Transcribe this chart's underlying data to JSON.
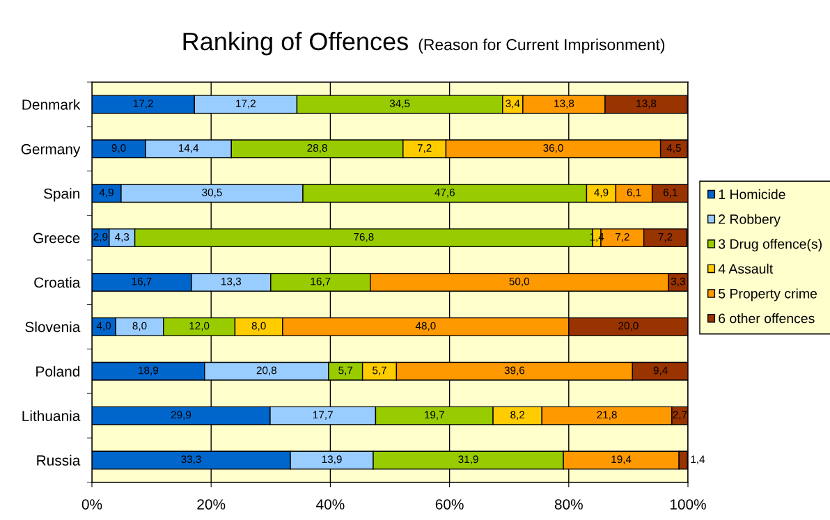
{
  "chart_data": {
    "type": "bar",
    "orientation": "horizontal",
    "stacked": true,
    "title": "Ranking of Offences",
    "subtitle": "(Reason for Current Imprisonment)",
    "categories": [
      "Denmark",
      "Germany",
      "Spain",
      "Greece",
      "Croatia",
      "Slovenia",
      "Poland",
      "Lithuania",
      "Russia"
    ],
    "series": [
      {
        "name": "1 Homicide",
        "color": "#0066cc",
        "values": [
          17.2,
          9.0,
          4.9,
          2.9,
          16.7,
          4.0,
          18.9,
          29.9,
          33.3
        ],
        "value_labels": [
          "17,2",
          "9,0",
          "4,9",
          "2,9",
          "16,7",
          "4,0",
          "18,9",
          "29,9",
          "33,3"
        ]
      },
      {
        "name": "2 Robbery",
        "color": "#99ccff",
        "values": [
          17.2,
          14.4,
          30.5,
          4.3,
          13.3,
          8.0,
          20.8,
          17.7,
          13.9
        ],
        "value_labels": [
          "17,2",
          "14,4",
          "30,5",
          "4,3",
          "13,3",
          "8,0",
          "20,8",
          "17,7",
          "13,9"
        ]
      },
      {
        "name": "3 Drug offence(s)",
        "color": "#99cc00",
        "values": [
          34.5,
          28.8,
          47.6,
          76.8,
          16.7,
          12.0,
          5.7,
          19.7,
          31.9
        ],
        "value_labels": [
          "34,5",
          "28,8",
          "47,6",
          "76,8",
          "16,7",
          "12,0",
          "5,7",
          "19,7",
          "31,9"
        ]
      },
      {
        "name": "4 Assault",
        "color": "#ffcc00",
        "values": [
          3.4,
          7.2,
          4.9,
          1.4,
          null,
          8.0,
          5.7,
          8.2,
          null
        ],
        "value_labels": [
          "3,4",
          "7,2",
          "4,9",
          "1,4",
          null,
          "8,0",
          "5,7",
          "8,2",
          null
        ]
      },
      {
        "name": "5 Property crime",
        "color": "#ff9900",
        "values": [
          13.8,
          36.0,
          6.1,
          7.2,
          50.0,
          48.0,
          39.6,
          21.8,
          19.4
        ],
        "value_labels": [
          "13,8",
          "36,0",
          "6,1",
          "7,2",
          "50,0",
          "48,0",
          "39,6",
          "21,8",
          "19,4"
        ]
      },
      {
        "name": "6 other offences",
        "color": "#993300",
        "values": [
          13.8,
          4.5,
          6.1,
          7.2,
          3.3,
          20.0,
          9.4,
          2.7,
          1.4
        ],
        "value_labels": [
          "13,8",
          "4,5",
          "6,1",
          "7,2",
          "3,3",
          "20,0",
          "9,4",
          "2,7",
          "1,4"
        ]
      }
    ],
    "xlim": [
      0,
      100
    ],
    "xticks": [
      {
        "value": 0,
        "label": "0%"
      },
      {
        "value": 20,
        "label": "20%"
      },
      {
        "value": 40,
        "label": "40%"
      },
      {
        "value": 60,
        "label": "60%"
      },
      {
        "value": 80,
        "label": "80%"
      },
      {
        "value": 100,
        "label": "100%"
      }
    ],
    "grid": "x",
    "legend": "right"
  }
}
